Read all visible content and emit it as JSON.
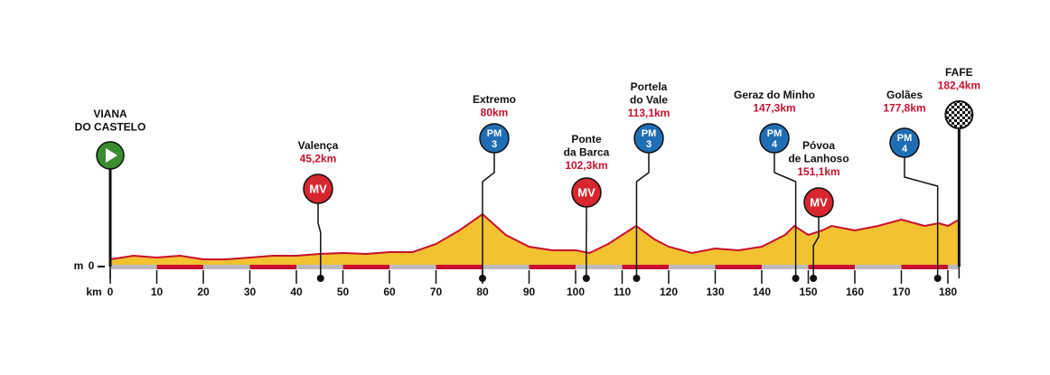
{
  "chart_data": {
    "type": "area",
    "xlabel": "km",
    "ylabel": "m",
    "xlim": [
      0,
      182.4
    ],
    "ylim": [
      0,
      600
    ],
    "xticks": [
      0,
      10,
      20,
      30,
      40,
      50,
      60,
      70,
      80,
      90,
      100,
      110,
      120,
      130,
      140,
      150,
      160,
      170,
      180
    ],
    "yticks": [
      0
    ],
    "x": [
      0,
      5,
      10,
      15,
      20,
      25,
      30,
      35,
      40,
      45,
      50,
      55,
      60,
      65,
      70,
      75,
      80,
      85,
      90,
      95,
      100,
      103,
      107,
      113,
      117,
      120,
      125,
      130,
      135,
      140,
      145,
      147,
      150,
      153,
      155,
      160,
      165,
      170,
      175,
      178,
      180,
      182.4
    ],
    "values": [
      80,
      120,
      100,
      120,
      80,
      80,
      100,
      120,
      120,
      140,
      150,
      140,
      160,
      160,
      250,
      400,
      580,
      350,
      220,
      180,
      180,
      150,
      250,
      450,
      300,
      220,
      150,
      200,
      180,
      220,
      350,
      450,
      350,
      400,
      450,
      400,
      450,
      520,
      450,
      480,
      450,
      520
    ],
    "fill": "#f2c230",
    "color": "#c8102e",
    "waypoints": [
      {
        "name": [
          "VIANA",
          "DO CASTELO"
        ],
        "x": 0,
        "badge": "start"
      },
      {
        "name": [
          "Valença"
        ],
        "x": 45.2,
        "x_label": "45,2km",
        "badge": "MV"
      },
      {
        "name": [
          "Extremo"
        ],
        "x": 80,
        "x_label": "80km",
        "badge": "PM",
        "category": 3
      },
      {
        "name": [
          "Ponte",
          "da Barca"
        ],
        "x": 102.3,
        "x_label": "102,3km",
        "badge": "MV"
      },
      {
        "name": [
          "Portela",
          "do Vale"
        ],
        "x": 113.1,
        "x_label": "113,1km",
        "badge": "PM",
        "category": 3
      },
      {
        "name": [
          "Geraz do Minho"
        ],
        "x": 147.3,
        "x_label": "147,3km",
        "badge": "PM",
        "category": 4
      },
      {
        "name": [
          "Póvoa",
          "de Lanhoso"
        ],
        "x": 151.1,
        "x_label": "151,1km",
        "badge": "MV"
      },
      {
        "name": [
          "Golães"
        ],
        "x": 177.8,
        "x_label": "177,8km",
        "badge": "PM",
        "category": 4
      },
      {
        "name": [
          "FAFE"
        ],
        "x": 182.4,
        "x_label": "182,4km",
        "badge": "finish"
      }
    ]
  }
}
